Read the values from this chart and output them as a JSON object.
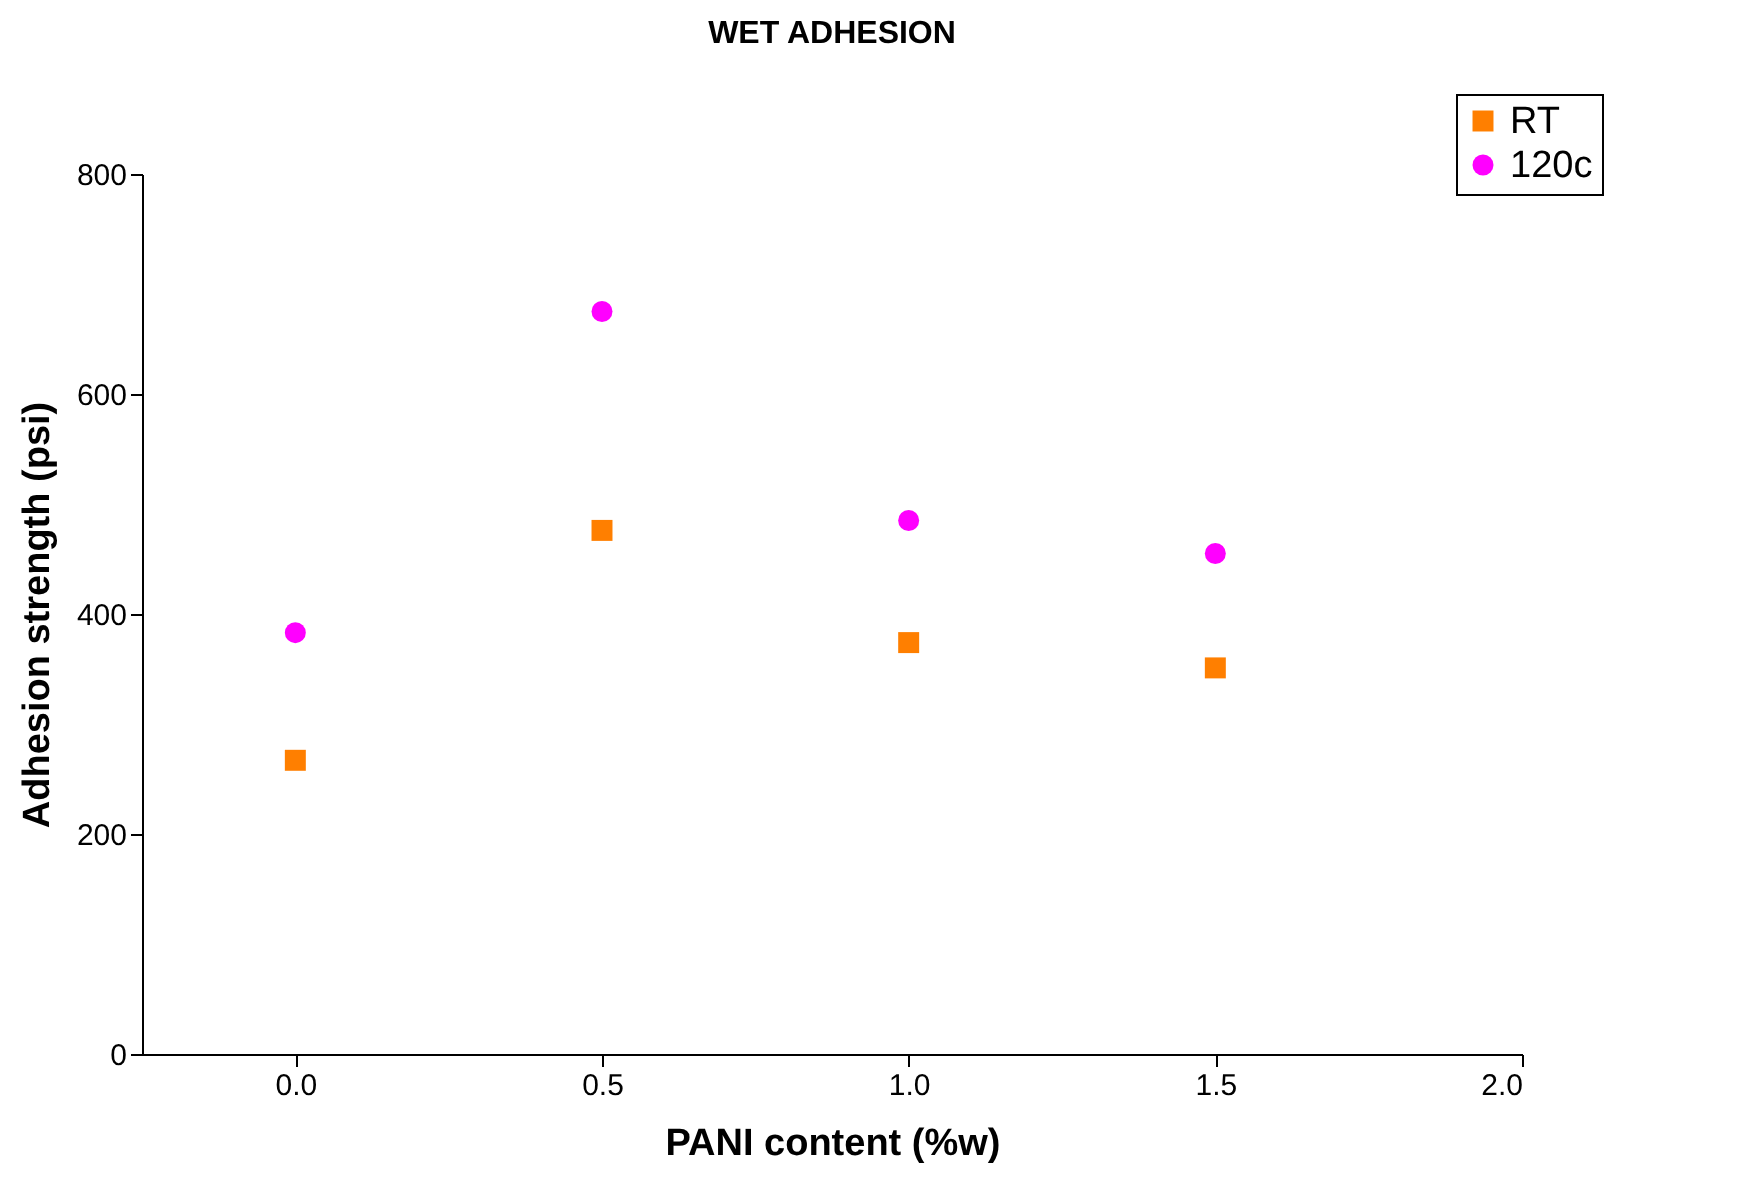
{
  "chart_data": {
    "type": "scatter",
    "title": "WET ADHESION",
    "xlabel": "PANI content (%w)",
    "ylabel": "Adhesion strength (psi)",
    "x": [
      0,
      0.5,
      1,
      1.5
    ],
    "series": [
      {
        "name": "RT",
        "color": "#ff7f00",
        "marker": "square",
        "values": [
          267,
          476,
          374,
          351
        ]
      },
      {
        "name": "120c",
        "color": "#ff00ff",
        "marker": "circle",
        "values": [
          383,
          675,
          485,
          455
        ]
      }
    ],
    "xlim": [
      -0.25,
      2
    ],
    "xticks": [
      {
        "value": 0,
        "label": "0.0"
      },
      {
        "value": 0.5,
        "label": "0.5"
      },
      {
        "value": 1,
        "label": "1.0"
      },
      {
        "value": 1.5,
        "label": "1.5"
      },
      {
        "value": 2,
        "label": "2.0"
      }
    ],
    "ylim": [
      0,
      800
    ],
    "yticks": [
      0,
      200,
      400,
      600,
      800
    ],
    "grid": false,
    "legend": "top right"
  }
}
